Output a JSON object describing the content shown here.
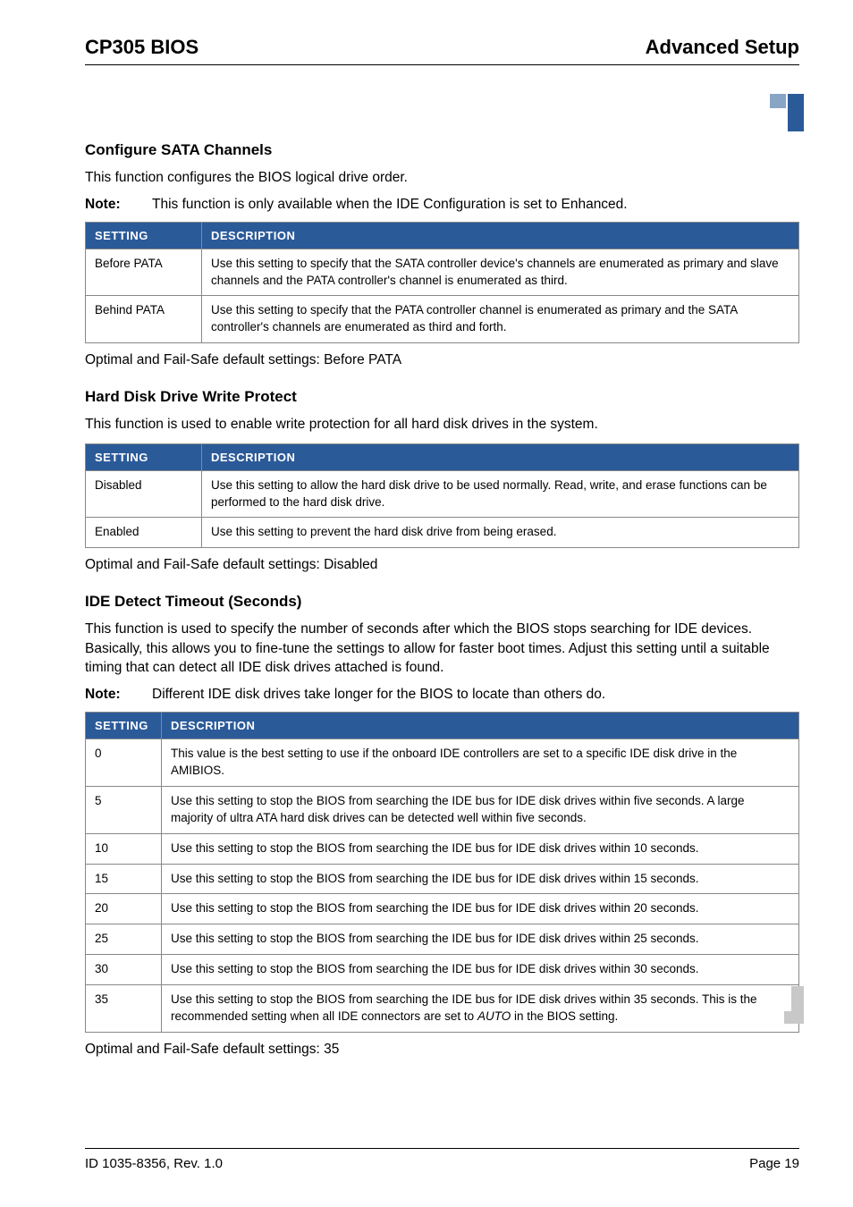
{
  "header": {
    "left": "CP305 BIOS",
    "right": "Advanced Setup"
  },
  "sections": [
    {
      "title": "Configure SATA Channels",
      "intro": "This function configures the BIOS logical drive order.",
      "note": "This function is only available when the IDE Configuration is set to Enhanced.",
      "table_header_col1": "SETTING",
      "table_header_col2": "DESCRIPTION",
      "rows": [
        {
          "s": "Before PATA",
          "d": "Use this setting to specify that the SATA controller device's channels are enumerated as primary and slave channels and the PATA controller's channel is enumerated as third."
        },
        {
          "s": "Behind PATA",
          "d": "Use this setting to specify that the PATA controller channel is enumerated as primary and the SATA controller's channels are enumerated as third and forth."
        }
      ],
      "default_text": "Optimal and Fail-Safe default settings: Before PATA"
    },
    {
      "title": "Hard Disk Drive Write Protect",
      "intro": "This function is used to enable write protection for all hard disk drives in the system.",
      "table_header_col1": "SETTING",
      "table_header_col2": "DESCRIPTION",
      "rows": [
        {
          "s": "Disabled",
          "d": "Use this setting to allow the hard disk drive to be used normally. Read, write, and erase functions can be performed to the hard disk drive."
        },
        {
          "s": "Enabled",
          "d": "Use this setting to prevent the hard disk drive from being erased."
        }
      ],
      "default_text": "Optimal and Fail-Safe default settings: Disabled"
    },
    {
      "title": "IDE Detect Timeout (Seconds)",
      "intro": "This function is used to specify the number of seconds after which the BIOS stops searching for IDE devices. Basically, this allows you to fine-tune the settings to allow for faster boot times. Adjust this setting until a suitable timing that can detect all IDE disk drives attached is found.",
      "note": "Different IDE disk drives take longer for the BIOS to locate than others do.",
      "table_header_col1": "SETTING",
      "table_header_col2": "DESCRIPTION",
      "rows": [
        {
          "s": "0",
          "d": "This value is the best setting to use if the onboard IDE controllers are set to a specific IDE disk drive in the AMIBIOS."
        },
        {
          "s": "5",
          "d": "Use this setting to stop the BIOS from searching the IDE bus for IDE disk drives within five seconds. A large majority of ultra ATA hard disk drives can be detected well within five seconds."
        },
        {
          "s": "10",
          "d": "Use this setting to stop the BIOS from searching the IDE bus for IDE disk drives within 10 seconds."
        },
        {
          "s": "15",
          "d": "Use this setting to stop the BIOS from searching the IDE bus for IDE disk drives within 15 seconds."
        },
        {
          "s": "20",
          "d": "Use this setting to stop the BIOS from searching the IDE bus for IDE disk drives within 20 seconds."
        },
        {
          "s": "25",
          "d": "Use this setting to stop the BIOS from searching the IDE bus for IDE disk drives within 25 seconds."
        },
        {
          "s": "30",
          "d": "Use this setting to stop the BIOS from searching the IDE bus for IDE disk drives within 30 seconds."
        },
        {
          "s": "35",
          "d_html": "Use this setting to stop the BIOS from searching the IDE bus for IDE disk drives within 35 seconds. This is the recommended setting when all IDE connectors are set to <em class='auto'>AUTO</em> in the BIOS setting."
        }
      ],
      "default_text": "Optimal and Fail-Safe default settings: 35"
    }
  ],
  "note_label": "Note:",
  "footer": {
    "left": "ID 1035-8356, Rev. 1.0",
    "right": "Page 19"
  },
  "colors": {
    "table_header_bg": "#2b5a99",
    "table_header_fg": "#ffffff",
    "border": "#888888",
    "corner_dark": "#2b5a99",
    "corner_light": "#88a5c6",
    "bottom_corner": "#c8c8c8"
  }
}
